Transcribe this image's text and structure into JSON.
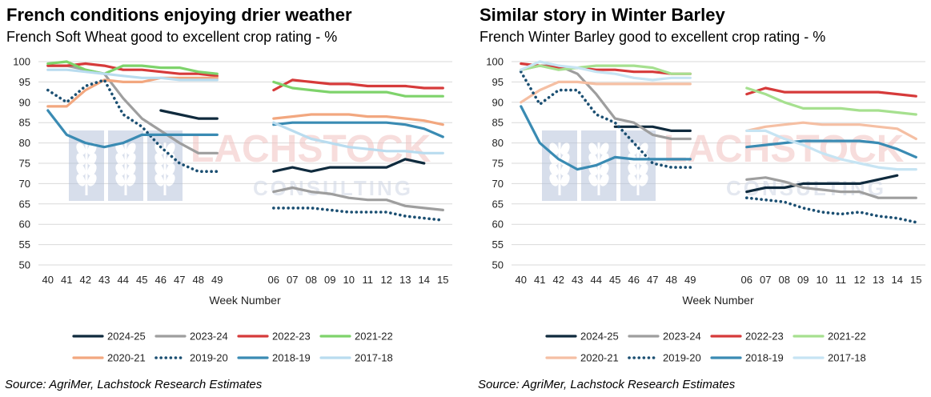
{
  "source": "Source: AgriMer, Lachstock Research Estimates",
  "watermark": {
    "brand": "LACHSTOCK",
    "sub": "CONSULTING"
  },
  "chart_data": [
    {
      "type": "line",
      "title": "French conditions enjoying drier weather",
      "subtitle": "French Soft Wheat good to excellent crop rating - %",
      "xlabel": "Week Number",
      "ylabel": "",
      "ylim": [
        50,
        100
      ],
      "yticks": [
        50,
        55,
        60,
        65,
        70,
        75,
        80,
        85,
        90,
        95,
        100
      ],
      "categories": [
        "40",
        "41",
        "42",
        "43",
        "44",
        "45",
        "46",
        "47",
        "48",
        "49",
        "",
        "",
        "06",
        "07",
        "08",
        "09",
        "10",
        "11",
        "12",
        "13",
        "14",
        "15"
      ],
      "grid": "horizontal",
      "legend": "bottom",
      "series": [
        {
          "name": "2024-25",
          "color": "#0f2a3d",
          "style": "solid",
          "values": [
            null,
            null,
            null,
            null,
            null,
            null,
            88,
            87,
            86,
            86,
            null,
            null,
            73,
            74,
            73,
            74,
            74,
            74,
            74,
            76,
            75,
            null
          ]
        },
        {
          "name": "2023-24",
          "color": "#9e9e9e",
          "style": "solid",
          "values": [
            99,
            99,
            98,
            97,
            91,
            86,
            83,
            80,
            77.5,
            77.5,
            null,
            null,
            68,
            69,
            68,
            67.5,
            66.5,
            66,
            66,
            64.5,
            64,
            63.5
          ]
        },
        {
          "name": "2022-23",
          "color": "#d63a3a",
          "style": "solid",
          "values": [
            99,
            99,
            99.5,
            99,
            98,
            98,
            97.5,
            97,
            97,
            96.5,
            null,
            null,
            93,
            95.5,
            95,
            94.5,
            94.5,
            94,
            94,
            94,
            93.5,
            93.5
          ]
        },
        {
          "name": "2021-22",
          "color": "#7ed36b",
          "style": "solid",
          "values": [
            99.5,
            100,
            98,
            97,
            99,
            99,
            98.5,
            98.5,
            97.5,
            97,
            null,
            null,
            95,
            93.5,
            93,
            92.5,
            92.5,
            92.5,
            92.5,
            91.5,
            91.5,
            91.5
          ]
        },
        {
          "name": "2020-21",
          "color": "#f2a77f",
          "style": "solid",
          "values": [
            89,
            89,
            93,
            95.5,
            95,
            95,
            96,
            96,
            96,
            96,
            null,
            null,
            86,
            86.5,
            87,
            87,
            87,
            86.5,
            86.5,
            86,
            85.5,
            84.5
          ]
        },
        {
          "name": "2019-20",
          "color": "#1b4f72",
          "style": "dotted",
          "values": [
            93,
            90,
            94,
            95.5,
            87,
            84,
            79,
            75,
            73,
            73,
            null,
            null,
            64,
            64,
            64,
            63.5,
            63,
            63,
            63,
            62,
            61.5,
            61
          ]
        },
        {
          "name": "2018-19",
          "color": "#3a8bb3",
          "style": "solid",
          "values": [
            88,
            82,
            80,
            79,
            80,
            82,
            82,
            82,
            82,
            82,
            null,
            null,
            84.5,
            85,
            85,
            85,
            85,
            85,
            85,
            84.5,
            83.5,
            81.5
          ]
        },
        {
          "name": "2017-18",
          "color": "#b9dcef",
          "style": "solid",
          "values": [
            98,
            98,
            97.5,
            97,
            96.5,
            96,
            96,
            95.5,
            95.5,
            95.5,
            null,
            null,
            85,
            83,
            81,
            80,
            79,
            78.5,
            78,
            78,
            77.5,
            77.5
          ]
        }
      ]
    },
    {
      "type": "line",
      "title": "Similar story in Winter Barley",
      "subtitle": "French Winter Barley good to excellent crop rating - %",
      "xlabel": "Week Number",
      "ylabel": "",
      "ylim": [
        50,
        100
      ],
      "yticks": [
        50,
        55,
        60,
        65,
        70,
        75,
        80,
        85,
        90,
        95,
        100
      ],
      "categories": [
        "40",
        "41",
        "42",
        "43",
        "44",
        "45",
        "46",
        "47",
        "48",
        "49",
        "",
        "",
        "06",
        "07",
        "08",
        "09",
        "10",
        "11",
        "12",
        "13",
        "14",
        "15"
      ],
      "grid": "horizontal",
      "legend": "bottom",
      "series": [
        {
          "name": "2024-25",
          "color": "#0f2a3d",
          "style": "solid",
          "values": [
            null,
            null,
            null,
            null,
            null,
            84,
            84,
            84,
            83,
            83,
            null,
            null,
            68,
            69,
            69,
            70,
            70,
            70,
            70,
            71,
            72,
            null
          ]
        },
        {
          "name": "2023-24",
          "color": "#9e9e9e",
          "style": "solid",
          "values": [
            98,
            99,
            99,
            97,
            92,
            86,
            85,
            82,
            81,
            81,
            null,
            null,
            71,
            71.5,
            70.5,
            69,
            68.5,
            68,
            68,
            66.5,
            66.5,
            66.5
          ]
        },
        {
          "name": "2022-23",
          "color": "#d63a3a",
          "style": "solid",
          "values": [
            99.5,
            99,
            98.5,
            98.5,
            98,
            98,
            97.5,
            97.5,
            97,
            97,
            null,
            null,
            92,
            93.5,
            92.5,
            92.5,
            92.5,
            92.5,
            92.5,
            92.5,
            92,
            91.5
          ]
        },
        {
          "name": "2021-22",
          "color": "#a6e08f",
          "style": "solid",
          "values": [
            98,
            99,
            98,
            98.5,
            99,
            99,
            99,
            98.5,
            97,
            97,
            null,
            null,
            93.5,
            92,
            90,
            88.5,
            88.5,
            88.5,
            88,
            88,
            87.5,
            87
          ]
        },
        {
          "name": "2020-21",
          "color": "#f5bfa3",
          "style": "solid",
          "values": [
            90,
            93,
            95,
            95,
            94.5,
            94.5,
            94.5,
            94.5,
            94.5,
            94.5,
            null,
            null,
            83,
            84,
            84.5,
            85,
            84.5,
            84.5,
            84.5,
            84,
            83.5,
            81
          ]
        },
        {
          "name": "2019-20",
          "color": "#1b4f72",
          "style": "dotted",
          "values": [
            97.5,
            89.5,
            93,
            93,
            87,
            85,
            80,
            75,
            74,
            74,
            null,
            null,
            66.5,
            66,
            65.5,
            64,
            63,
            62.5,
            63,
            62,
            61.5,
            60.5
          ]
        },
        {
          "name": "2018-19",
          "color": "#3a8bb3",
          "style": "solid",
          "values": [
            89,
            80,
            76,
            73.5,
            74.5,
            76.5,
            76,
            76,
            76,
            76,
            null,
            null,
            79,
            79.5,
            80,
            80.5,
            80.5,
            80.5,
            80.5,
            80,
            78.5,
            76.5
          ]
        },
        {
          "name": "2017-18",
          "color": "#c6e4f3",
          "style": "solid",
          "values": [
            98,
            100,
            99,
            98.5,
            97.5,
            97,
            96,
            95.5,
            96,
            96,
            null,
            null,
            83,
            83,
            81,
            79.5,
            77.5,
            76,
            75,
            74,
            73.5,
            73.5
          ]
        }
      ]
    }
  ]
}
